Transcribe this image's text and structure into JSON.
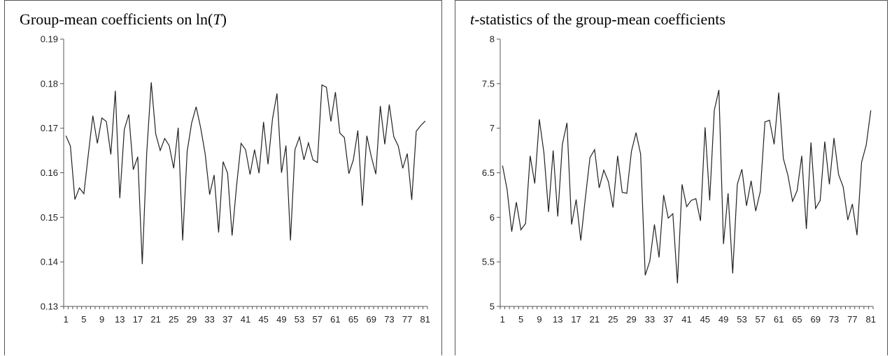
{
  "chart_data": [
    {
      "type": "line",
      "title_prefix": "Group-mean coefficients on ln(",
      "title_italic": "T",
      "title_suffix": ")",
      "title": "Group-mean coefficients on ln(T)",
      "xlabel": "",
      "ylabel": "",
      "ylim": [
        0.13,
        0.19
      ],
      "yticks": [
        "0.13",
        "0.14",
        "0.15",
        "0.16",
        "0.17",
        "0.18",
        "0.19"
      ],
      "xticks": [
        "1",
        "5",
        "9",
        "13",
        "17",
        "21",
        "25",
        "29",
        "33",
        "37",
        "41",
        "45",
        "49",
        "53",
        "57",
        "61",
        "65",
        "69",
        "73",
        "77",
        "81"
      ],
      "grid": false,
      "legend": "none",
      "line_color": "#222222",
      "series": [
        {
          "values": [
            0.1683,
            0.166,
            0.154,
            0.1566,
            0.1553,
            0.1642,
            0.1728,
            0.1666,
            0.1723,
            0.1715,
            0.1641,
            0.1784,
            0.1543,
            0.1697,
            0.1731,
            0.1607,
            0.1636,
            0.1395,
            0.1646,
            0.1803,
            0.1687,
            0.165,
            0.1677,
            0.1661,
            0.161,
            0.1701,
            0.1448,
            0.1648,
            0.1712,
            0.1748,
            0.1701,
            0.1643,
            0.1551,
            0.1595,
            0.1466,
            0.1625,
            0.1599,
            0.1459,
            0.1571,
            0.1666,
            0.1652,
            0.1596,
            0.1652,
            0.1599,
            0.1714,
            0.1619,
            0.1721,
            0.1778,
            0.16,
            0.1661,
            0.1448,
            0.1652,
            0.168,
            0.1629,
            0.1667,
            0.1629,
            0.1623,
            0.1797,
            0.1792,
            0.1715,
            0.1781,
            0.1689,
            0.1679,
            0.1598,
            0.1629,
            0.1695,
            0.1526,
            0.1683,
            0.1636,
            0.1597,
            0.175,
            0.1664,
            0.1753,
            0.1681,
            0.166,
            0.161,
            0.1643,
            0.1539,
            0.1693,
            0.1706,
            0.1716
          ]
        }
      ]
    },
    {
      "type": "line",
      "title_prefix": "",
      "title_italic": "t",
      "title_suffix": "-statistics of the group-mean coefficients",
      "title": "t-statistics of the group-mean coefficients",
      "xlabel": "",
      "ylabel": "",
      "ylim": [
        5,
        8
      ],
      "yticks": [
        "5",
        "5.5",
        "6",
        "6.5",
        "7",
        "7.5",
        "8"
      ],
      "xticks": [
        "1",
        "5",
        "9",
        "13",
        "17",
        "21",
        "25",
        "29",
        "33",
        "37",
        "41",
        "45",
        "49",
        "53",
        "57",
        "61",
        "65",
        "69",
        "73",
        "77",
        "81"
      ],
      "grid": false,
      "legend": "none",
      "line_color": "#222222",
      "series": [
        {
          "values": [
            6.58,
            6.31,
            5.84,
            6.17,
            5.86,
            5.93,
            6.69,
            6.38,
            7.1,
            6.72,
            6.06,
            6.75,
            6.01,
            6.82,
            7.06,
            5.92,
            6.2,
            5.74,
            6.22,
            6.67,
            6.76,
            6.33,
            6.53,
            6.4,
            6.11,
            6.69,
            6.28,
            6.27,
            6.74,
            6.95,
            6.71,
            5.35,
            5.51,
            5.92,
            5.55,
            6.25,
            5.99,
            6.04,
            5.26,
            6.37,
            6.12,
            6.19,
            6.21,
            5.96,
            7.01,
            6.19,
            7.2,
            7.43,
            5.7,
            6.27,
            5.37,
            6.37,
            6.54,
            6.13,
            6.41,
            6.07,
            6.29,
            7.07,
            7.09,
            6.82,
            7.4,
            6.66,
            6.47,
            6.18,
            6.3,
            6.69,
            5.87,
            6.84,
            6.1,
            6.19,
            6.85,
            6.37,
            6.89,
            6.48,
            6.34,
            5.97,
            6.15,
            5.8,
            6.62,
            6.81,
            7.2
          ]
        }
      ]
    }
  ]
}
